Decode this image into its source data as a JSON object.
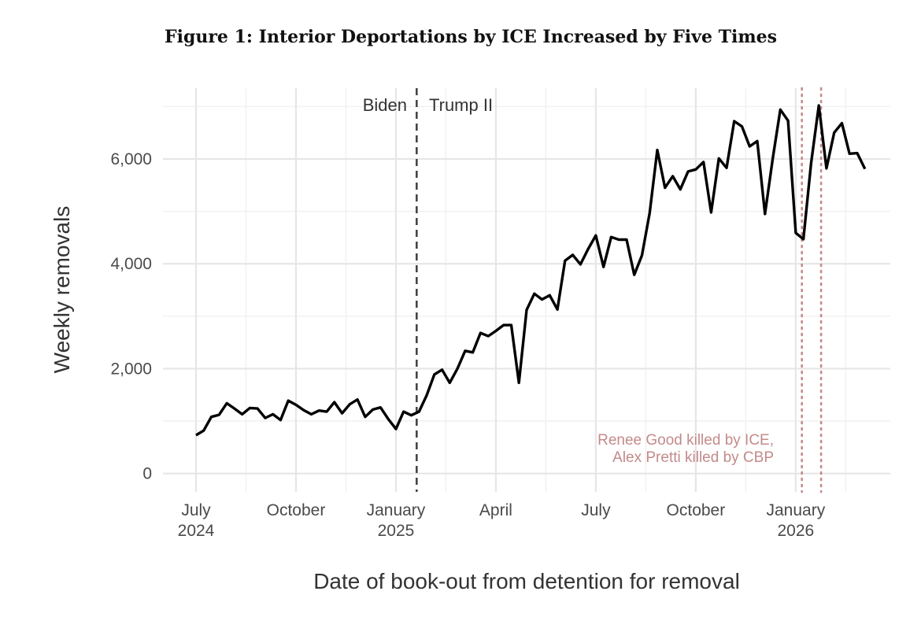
{
  "chart_data": {
    "type": "line",
    "title": "Figure 1: Interior Deportations by ICE Increased by Five Times",
    "xlabel": "Date of book-out from detention for removal",
    "ylabel": "Weekly removals",
    "ylim": [
      -350,
      7350
    ],
    "grid": true,
    "y_ticks": [
      {
        "value": 0,
        "label": "0"
      },
      {
        "value": 2000,
        "label": "2,000"
      },
      {
        "value": 4000,
        "label": "4,000"
      },
      {
        "value": 6000,
        "label": "6,000"
      }
    ],
    "x_ticks": [
      {
        "week": 0,
        "label": "July",
        "sublabel": "2024"
      },
      {
        "week": 13,
        "label": "October",
        "sublabel": ""
      },
      {
        "week": 26,
        "label": "January",
        "sublabel": "2025"
      },
      {
        "week": 39,
        "label": "April",
        "sublabel": ""
      },
      {
        "week": 52,
        "label": "July",
        "sublabel": ""
      },
      {
        "week": 65,
        "label": "October",
        "sublabel": ""
      },
      {
        "week": 78,
        "label": "January",
        "sublabel": "2026"
      }
    ],
    "x_range_weeks": [
      -4.3,
      90.3
    ],
    "series": [
      {
        "name": "Weekly removals",
        "color": "#000000",
        "week_start": 0,
        "values": [
          730,
          820,
          1080,
          1120,
          1340,
          1240,
          1130,
          1250,
          1240,
          1060,
          1130,
          1020,
          1390,
          1310,
          1210,
          1130,
          1200,
          1180,
          1360,
          1150,
          1320,
          1410,
          1080,
          1220,
          1260,
          1040,
          850,
          1180,
          1110,
          1180,
          1490,
          1890,
          1980,
          1730,
          2000,
          2340,
          2310,
          2680,
          2620,
          2720,
          2830,
          2830,
          1730,
          3120,
          3430,
          3320,
          3400,
          3130,
          4060,
          4170,
          3990,
          4280,
          4540,
          3940,
          4510,
          4460,
          4460,
          3790,
          4160,
          4970,
          6170,
          5450,
          5670,
          5420,
          5760,
          5800,
          5940,
          4980,
          6010,
          5830,
          6720,
          6620,
          6240,
          6340,
          4950,
          6000,
          6940,
          6730,
          4590,
          4470,
          5920,
          7020,
          5820,
          6500,
          6680,
          6100,
          6110,
          5810
        ]
      }
    ],
    "vlines": [
      {
        "week": 28.7,
        "style": "dashed",
        "color": "#444444"
      },
      {
        "week": 78.8,
        "style": "dotted",
        "color": "#c48a8a"
      },
      {
        "week": 81.3,
        "style": "dotted",
        "color": "#c48a8a"
      }
    ],
    "period_labels": {
      "left": "Biden",
      "right": "Trump II"
    },
    "annotation": [
      "Renee Good killed by ICE,",
      "Alex Pretti killed by CBP"
    ]
  }
}
